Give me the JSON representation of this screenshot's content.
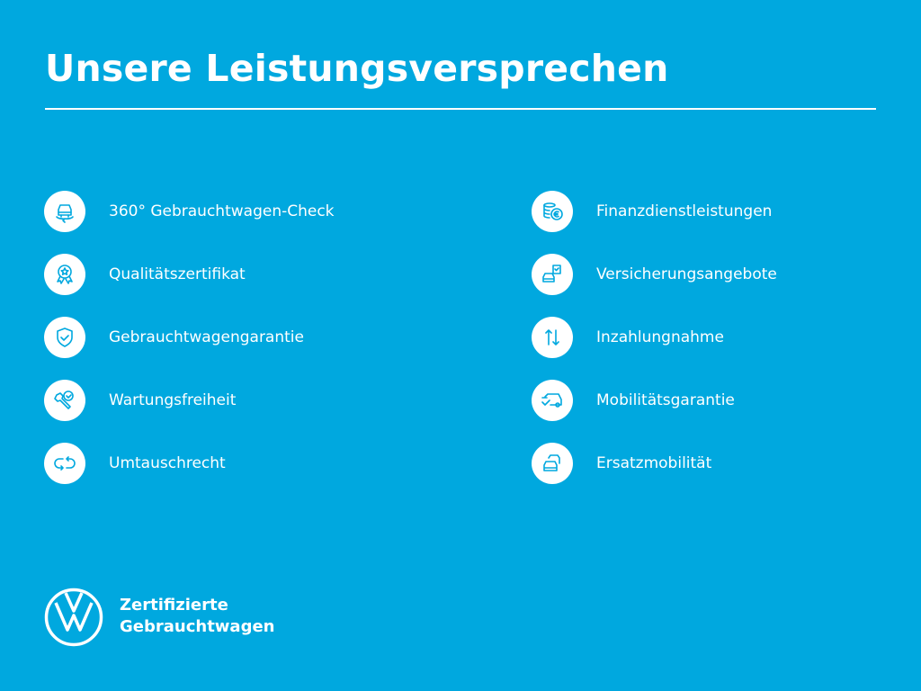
{
  "header": {
    "title": "Unsere Leistungsversprechen"
  },
  "left_items": [
    {
      "label": "360° Gebrauchtwagen-Check",
      "icon": "car-360-icon"
    },
    {
      "label": "Qualitätszertifikat",
      "icon": "award-icon"
    },
    {
      "label": "Gebrauchtwagengarantie",
      "icon": "shield-check-icon"
    },
    {
      "label": "Wartungsfreiheit",
      "icon": "wrench-check-icon"
    },
    {
      "label": "Umtauschrecht",
      "icon": "exchange-icon"
    }
  ],
  "right_items": [
    {
      "label": "Finanzdienstleistungen",
      "icon": "coins-euro-icon"
    },
    {
      "label": "Versicherungsangebote",
      "icon": "car-document-icon"
    },
    {
      "label": "Inzahlungnahme",
      "icon": "arrows-up-down-icon"
    },
    {
      "label": "Mobilitätsgarantie",
      "icon": "van-check-icon"
    },
    {
      "label": "Ersatzmobilität",
      "icon": "cars-icon"
    }
  ],
  "footer": {
    "brand_line1": "Zertifizierte",
    "brand_line2": "Gebrauchtwagen",
    "logo": "vw-logo"
  },
  "colors": {
    "background": "#00a8df",
    "foreground": "#ffffff"
  }
}
